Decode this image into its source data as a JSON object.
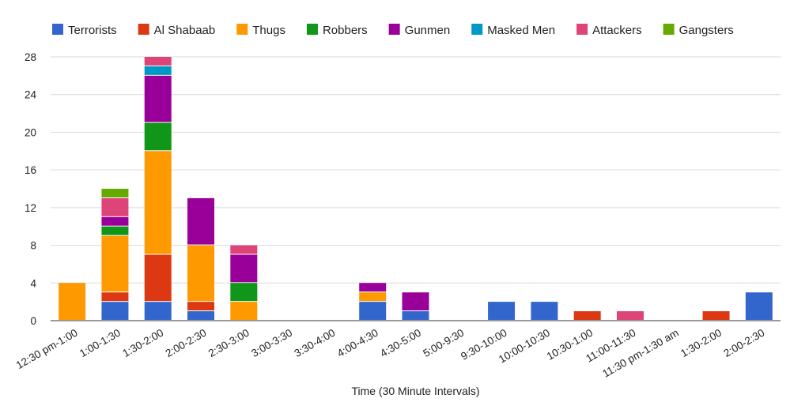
{
  "chart_data": {
    "type": "bar",
    "stacked": true,
    "title": "",
    "xlabel": "Time (30 Minute Intervals)",
    "ylabel": "",
    "ylim": [
      0,
      28
    ],
    "yticks": [
      0,
      4,
      8,
      12,
      16,
      20,
      24,
      28
    ],
    "grid": true,
    "legend_position": "top",
    "categories": [
      "12:30 pm-1:00",
      "1:00-1:30",
      "1:30-2:00",
      "2:00-2:30",
      "2:30-3:00",
      "3:00-3:30",
      "3:30-4:00",
      "4:00-4:30",
      "4:30-5:00",
      "5:00-9:30",
      "9:30-10:00",
      "10:00-10:30",
      "10:30-1:00",
      "11:00-11:30",
      "11:30 pm-1:30 am",
      "1:30-2:00",
      "2:00-2:30"
    ],
    "series": [
      {
        "name": "Terrorists",
        "color": "#3366cc",
        "values": [
          0,
          2,
          2,
          1,
          0,
          0,
          0,
          2,
          1,
          0,
          2,
          2,
          0,
          0,
          0,
          0,
          3
        ]
      },
      {
        "name": "Al Shabaab",
        "color": "#dc3912",
        "values": [
          0,
          1,
          5,
          1,
          0,
          0,
          0,
          0,
          0,
          0,
          0,
          0,
          1,
          0,
          0,
          1,
          0
        ]
      },
      {
        "name": "Thugs",
        "color": "#ff9900",
        "values": [
          4,
          6,
          11,
          6,
          2,
          0,
          0,
          1,
          0,
          0,
          0,
          0,
          0,
          0,
          0,
          0,
          0
        ]
      },
      {
        "name": "Robbers",
        "color": "#109618",
        "values": [
          0,
          1,
          3,
          0,
          2,
          0,
          0,
          0,
          0,
          0,
          0,
          0,
          0,
          0,
          0,
          0,
          0
        ]
      },
      {
        "name": "Gunmen",
        "color": "#990099",
        "values": [
          0,
          1,
          5,
          5,
          3,
          0,
          0,
          1,
          2,
          0,
          0,
          0,
          0,
          0,
          0,
          0,
          0
        ]
      },
      {
        "name": "Masked Men",
        "color": "#0099c6",
        "values": [
          0,
          0,
          1,
          0,
          0,
          0,
          0,
          0,
          0,
          0,
          0,
          0,
          0,
          0,
          0,
          0,
          0
        ]
      },
      {
        "name": "Attackers",
        "color": "#dd4477",
        "values": [
          0,
          2,
          1,
          0,
          1,
          0,
          0,
          0,
          0,
          0,
          0,
          0,
          0,
          1,
          0,
          0,
          0
        ]
      },
      {
        "name": "Gangsters",
        "color": "#66aa00",
        "values": [
          0,
          1,
          0,
          0,
          0,
          0,
          0,
          0,
          0,
          0,
          0,
          0,
          0,
          0,
          0,
          0,
          0
        ]
      }
    ]
  }
}
